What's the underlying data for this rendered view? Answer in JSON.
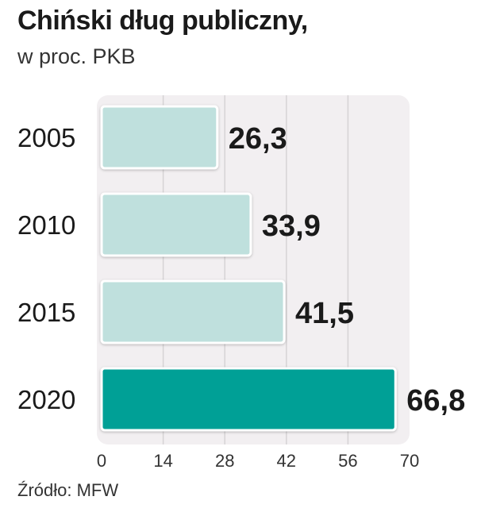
{
  "chart_data": {
    "type": "bar",
    "orientation": "horizontal",
    "title": "Chiński dług publiczny,",
    "subtitle": "w proc. PKB",
    "categories": [
      "2005",
      "2010",
      "2015",
      "2020"
    ],
    "values": [
      26.3,
      33.9,
      41.5,
      66.8
    ],
    "value_labels": [
      "26,3",
      "33,9",
      "41,5",
      "66,8"
    ],
    "xlim": [
      0,
      70
    ],
    "xticks": [
      0,
      14,
      28,
      42,
      56,
      70
    ],
    "grid": true,
    "colors": {
      "bar": "#bfe0dd",
      "highlight_bar": "#00a096",
      "bar_border": "#ffffff",
      "plot_bg": "#f2eff1",
      "grid": "#d6d3d5"
    },
    "highlight_index": 3
  },
  "source": "Źródło: MFW"
}
